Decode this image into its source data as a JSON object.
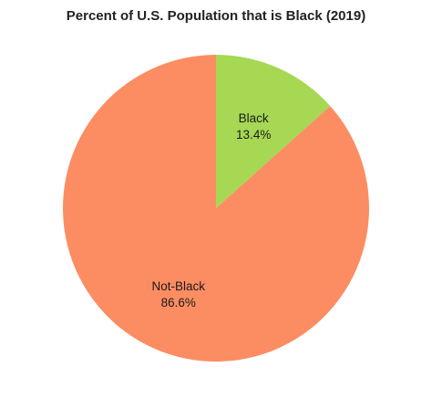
{
  "chart_data": {
    "type": "pie",
    "title": "Percent of U.S. Population that is Black (2019)",
    "slices": [
      {
        "label": "Black",
        "value": 13.4,
        "value_label": "13.4%",
        "color": "#a6d854"
      },
      {
        "label": "Not-Black",
        "value": 86.6,
        "value_label": "86.6%",
        "color": "#fc8d62"
      }
    ],
    "start_angle": "12 o'clock",
    "direction": "clockwise",
    "legend": "none"
  }
}
